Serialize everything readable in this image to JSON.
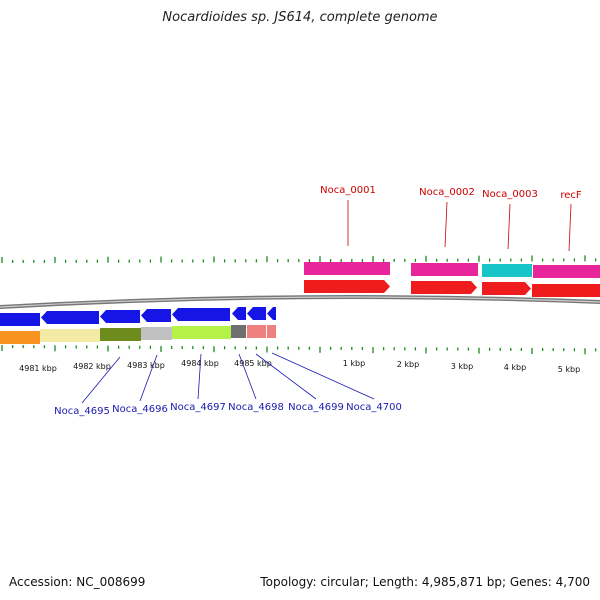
{
  "title": "Nocardioides sp. JS614, complete genome",
  "footer": {
    "accession": "Accession: NC_008699",
    "summary": "Topology: circular; Length: 4,985,871 bp; Genes: 4,700"
  },
  "colors": {
    "forward_cds": "#ee1c1c",
    "reverse_cds": "#1515e6",
    "pink_feature": "#e8259a",
    "cyan_feature": "#17c4c8",
    "tick": "#1c8a1c",
    "label_red": "#cc0000",
    "label_blue": "#1a1ab0",
    "backbone": "#777777"
  },
  "kbp_labels": [
    "4981 kbp",
    "4982 kbp",
    "4983 kbp",
    "4984 kbp",
    "4985 kbp",
    "1 kbp",
    "2 kbp",
    "3 kbp",
    "4 kbp",
    "5 kbp"
  ],
  "forward_genes": [
    {
      "label": "Noca_0001"
    },
    {
      "label": "Noca_0002"
    },
    {
      "label": "Noca_0003"
    },
    {
      "label": "recF"
    }
  ],
  "reverse_genes": [
    {
      "label": "Noca_4695"
    },
    {
      "label": "Noca_4696"
    },
    {
      "label": "Noca_4697"
    },
    {
      "label": "Noca_4698"
    },
    {
      "label": "Noca_4699"
    },
    {
      "label": "Noca_4700"
    }
  ]
}
